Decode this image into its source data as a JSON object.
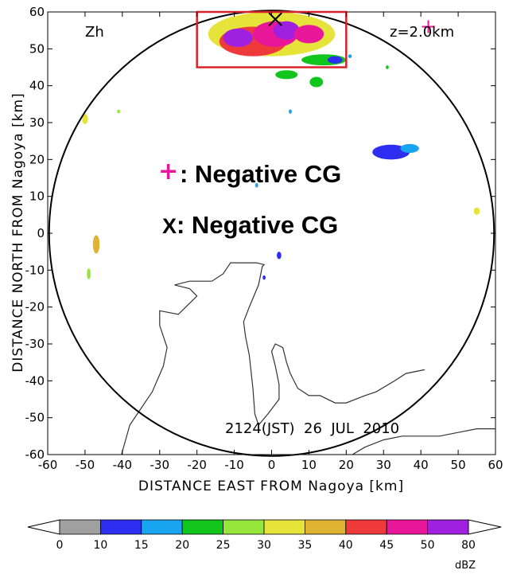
{
  "chart_data": {
    "type": "heatmap",
    "title": "",
    "panel_label": "Zh",
    "height_label": "z=2.0km",
    "xlabel": "DISTANCE EAST FROM Nagoya [km]",
    "ylabel": "DISTANCE NORTH FROM Nagoya [km]",
    "xlim": [
      -60,
      60
    ],
    "ylim": [
      -60,
      60
    ],
    "x_ticks": [
      "-60",
      "-50",
      "-40",
      "-30",
      "-20",
      "-10",
      "0",
      "10",
      "20",
      "30",
      "40",
      "50",
      "60"
    ],
    "y_ticks": [
      "60",
      "50",
      "40",
      "30",
      "20",
      "10",
      "0",
      "-10",
      "-20",
      "-30",
      "-40",
      "-50",
      "-60"
    ],
    "timestamp": "2124(JST)  26  JUL  2010",
    "legend": [
      {
        "symbol": "+",
        "label": ": Negative CG",
        "color": "#e8179a"
      },
      {
        "symbol": "X",
        "label": ": Negative CG",
        "color": "#000000"
      }
    ],
    "range_circle_radius_km": 60,
    "highlight_box": {
      "x": [
        -20,
        20
      ],
      "y": [
        45,
        60
      ],
      "color": "#d8212a"
    },
    "lightning": [
      {
        "type": "+",
        "x": 42,
        "y": 56
      },
      {
        "type": "X",
        "x": 1,
        "y": 58
      }
    ],
    "colorbar": {
      "unit": "dBZ",
      "ticks": [
        "0",
        "10",
        "15",
        "20",
        "25",
        "30",
        "35",
        "40",
        "45",
        "50",
        "80"
      ],
      "colors": [
        "#a0a0a0",
        "#2d2ef0",
        "#18a4f0",
        "#12c51c",
        "#96e53b",
        "#e6e43a",
        "#e0b332",
        "#ee3a3a",
        "#e8179a",
        "#a020e0"
      ]
    },
    "echo_cells": [
      {
        "x": 0,
        "y": 54,
        "rx": 17,
        "ry": 6,
        "dbz": 30
      },
      {
        "x": -5,
        "y": 52,
        "rx": 9,
        "ry": 4,
        "dbz": 40
      },
      {
        "x": 1,
        "y": 54,
        "rx": 6,
        "ry": 3.5,
        "dbz": 47
      },
      {
        "x": -9,
        "y": 53,
        "rx": 4,
        "ry": 2.5,
        "dbz": 52
      },
      {
        "x": 4,
        "y": 55,
        "rx": 3.5,
        "ry": 2.5,
        "dbz": 55
      },
      {
        "x": 10,
        "y": 54,
        "rx": 4,
        "ry": 2.5,
        "dbz": 45
      },
      {
        "x": 14,
        "y": 47,
        "rx": 6,
        "ry": 1.5,
        "dbz": 22
      },
      {
        "x": 17,
        "y": 47,
        "rx": 2,
        "ry": 1,
        "dbz": 12
      },
      {
        "x": 4,
        "y": 43,
        "rx": 3,
        "ry": 1.2,
        "dbz": 22
      },
      {
        "x": 12,
        "y": 41,
        "rx": 1.8,
        "ry": 1.4,
        "dbz": 22
      },
      {
        "x": 32,
        "y": 22,
        "rx": 5,
        "ry": 2,
        "dbz": 12
      },
      {
        "x": 37,
        "y": 23,
        "rx": 2.5,
        "ry": 1.2,
        "dbz": 16
      },
      {
        "x": -50,
        "y": 31,
        "rx": 0.8,
        "ry": 1.4,
        "dbz": 33
      },
      {
        "x": -47,
        "y": -3,
        "rx": 0.9,
        "ry": 2.5,
        "dbz": 35
      },
      {
        "x": -49,
        "y": -11,
        "rx": 0.5,
        "ry": 1.5,
        "dbz": 28
      },
      {
        "x": 55,
        "y": 6,
        "rx": 0.8,
        "ry": 1,
        "dbz": 33
      },
      {
        "x": 2,
        "y": -6,
        "rx": 0.6,
        "ry": 1,
        "dbz": 12
      },
      {
        "x": -4,
        "y": 13,
        "rx": 0.4,
        "ry": 0.6,
        "dbz": 16
      },
      {
        "x": 5,
        "y": 33,
        "rx": 0.4,
        "ry": 0.6,
        "dbz": 16
      },
      {
        "x": 21,
        "y": 48,
        "rx": 0.5,
        "ry": 0.5,
        "dbz": 16
      },
      {
        "x": 31,
        "y": 45,
        "rx": 0.4,
        "ry": 0.5,
        "dbz": 22
      },
      {
        "x": -41,
        "y": 33,
        "rx": 0.4,
        "ry": 0.5,
        "dbz": 28
      },
      {
        "x": -2,
        "y": -12,
        "rx": 0.4,
        "ry": 0.6,
        "dbz": 12
      }
    ],
    "coastline": [
      [
        [
          -40.5,
          -61
        ],
        [
          -38,
          -52
        ],
        [
          -32,
          -43
        ],
        [
          -29,
          -36
        ],
        [
          -28,
          -31
        ],
        [
          -30,
          -25
        ],
        [
          -30,
          -21
        ],
        [
          -25,
          -22
        ],
        [
          -21,
          -18
        ],
        [
          -20,
          -17
        ],
        [
          -22,
          -15
        ],
        [
          -26,
          -14
        ],
        [
          -22,
          -13
        ],
        [
          -16,
          -13
        ],
        [
          -13,
          -11
        ],
        [
          -11,
          -8
        ],
        [
          -4,
          -8
        ],
        [
          -2,
          -8.5
        ],
        [
          -2.5,
          -9
        ],
        [
          -3.5,
          -14
        ],
        [
          -6,
          -20
        ],
        [
          -7.5,
          -24
        ],
        [
          -7,
          -28
        ],
        [
          -6,
          -33
        ],
        [
          -5,
          -42
        ],
        [
          -4.5,
          -49
        ],
        [
          -3.5,
          -52
        ],
        [
          -1,
          -49
        ],
        [
          2,
          -45
        ],
        [
          2,
          -41
        ],
        [
          1,
          -36
        ],
        [
          0,
          -32
        ],
        [
          1,
          -30
        ],
        [
          3,
          -31
        ],
        [
          4,
          -35
        ],
        [
          5,
          -38
        ],
        [
          7,
          -42
        ],
        [
          10,
          -44
        ],
        [
          13,
          -44
        ],
        [
          17,
          -46
        ],
        [
          20,
          -46
        ],
        [
          25,
          -44
        ],
        [
          28,
          -43
        ],
        [
          33,
          -40
        ],
        [
          36,
          -38
        ],
        [
          41,
          -37
        ]
      ],
      [
        [
          20,
          -61
        ],
        [
          25,
          -58
        ],
        [
          30,
          -56
        ],
        [
          35,
          -55
        ],
        [
          40,
          -55
        ],
        [
          45,
          -55
        ],
        [
          50,
          -54
        ],
        [
          55,
          -53
        ],
        [
          60,
          -53
        ]
      ]
    ]
  }
}
